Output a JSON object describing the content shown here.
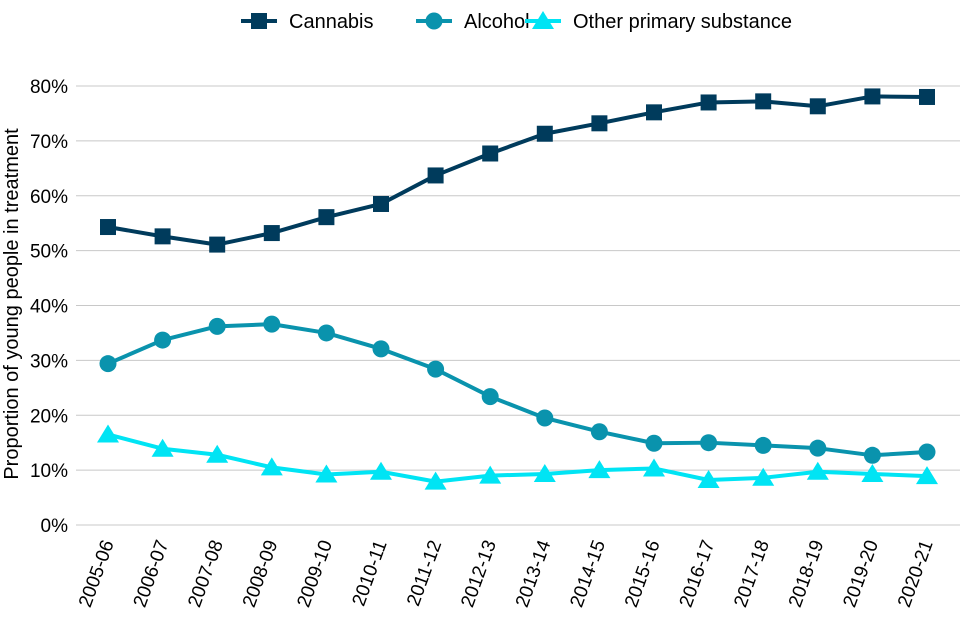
{
  "chart_data": {
    "type": "line",
    "title": "",
    "xlabel": "",
    "ylabel": "Proportion of young people in treatment",
    "ylim": [
      0,
      80
    ],
    "yticks": [
      "0%",
      "10%",
      "20%",
      "30%",
      "40%",
      "50%",
      "60%",
      "70%",
      "80%"
    ],
    "grid": "horizontal",
    "legend_position": "top",
    "categories": [
      "2005-06",
      "2006-07",
      "2007-08",
      "2008-09",
      "2009-10",
      "2010-11",
      "2011-12",
      "2012-13",
      "2013-14",
      "2014-15",
      "2015-16",
      "2016-17",
      "2017-18",
      "2018-19",
      "2019-20",
      "2020-21"
    ],
    "series": [
      {
        "name": "Cannabis",
        "marker": "square",
        "color": "#003B5C",
        "values": [
          54.3,
          52.6,
          51.1,
          53.2,
          56.1,
          58.5,
          63.7,
          67.7,
          71.3,
          73.2,
          75.2,
          77.0,
          77.2,
          76.3,
          78.1,
          78.0
        ]
      },
      {
        "name": "Alcohol",
        "marker": "circle",
        "color": "#0A93AD",
        "values": [
          29.4,
          33.7,
          36.2,
          36.6,
          35.0,
          32.1,
          28.4,
          23.4,
          19.5,
          17.0,
          14.9,
          15.0,
          14.5,
          14.0,
          12.7,
          13.3
        ]
      },
      {
        "name": "Other primary substance",
        "marker": "triangle",
        "color": "#00E4F4",
        "values": [
          16.5,
          13.9,
          12.8,
          10.5,
          9.2,
          9.7,
          7.9,
          9.0,
          9.3,
          10.0,
          10.3,
          8.2,
          8.6,
          9.7,
          9.3,
          8.9
        ]
      }
    ]
  }
}
